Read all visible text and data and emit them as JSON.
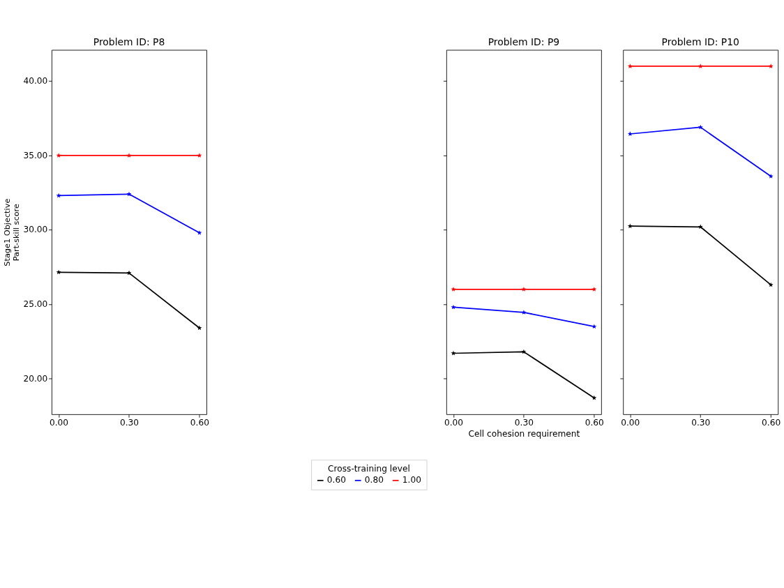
{
  "chart_data": [
    {
      "type": "line",
      "title": "Problem ID: P8",
      "legend_title": "Cross-training level",
      "legend": "bottom",
      "ylabel": "Stage1 Objective\nPart-skill score",
      "x": [
        0,
        0.3,
        0.6
      ],
      "xlim": [
        -0.03,
        0.63
      ],
      "xticks": [
        {
          "value": 0,
          "label": "0.00"
        },
        {
          "value": 0.3,
          "label": "0.30"
        },
        {
          "value": 0.6,
          "label": "0.60"
        }
      ],
      "ylim": [
        17.6,
        42.1
      ],
      "yticks": [
        {
          "value": 20,
          "label": "20.00"
        },
        {
          "value": 25,
          "label": "25.00"
        },
        {
          "value": 30,
          "label": "30.00"
        },
        {
          "value": 35,
          "label": "35.00"
        },
        {
          "value": 40,
          "label": "40.00"
        }
      ],
      "marker": "star",
      "grid": false,
      "series": [
        {
          "name": "0.60",
          "color": "#000000",
          "values": [
            27.15,
            27.1,
            23.4
          ]
        },
        {
          "name": "0.80",
          "color": "#0000ff",
          "values": [
            32.3,
            32.4,
            29.8
          ]
        },
        {
          "name": "1.00",
          "color": "#ff0000",
          "values": [
            35.0,
            35.0,
            35.0
          ]
        }
      ]
    },
    {
      "type": "line",
      "title": "Problem ID: P9",
      "xlabel": "Cell cohesion requirement",
      "tick_labels": "x",
      "x": [
        0,
        0.3,
        0.6
      ],
      "xlim": [
        -0.03,
        0.63
      ],
      "xticks": [
        {
          "value": 0,
          "label": "0.00"
        },
        {
          "value": 0.3,
          "label": "0.30"
        },
        {
          "value": 0.6,
          "label": "0.60"
        }
      ],
      "ylim": [
        17.6,
        42.1
      ],
      "yticks": [
        20,
        25,
        30,
        35,
        40
      ],
      "marker": "star",
      "grid": false,
      "series": [
        {
          "color": "#000000",
          "values": [
            21.7,
            21.8,
            18.7
          ]
        },
        {
          "color": "#0000ff",
          "values": [
            24.8,
            24.45,
            23.5
          ]
        },
        {
          "color": "#ff0000",
          "values": [
            26.0,
            26.0,
            26.0
          ]
        }
      ]
    },
    {
      "type": "line",
      "title": "Problem ID: P10",
      "tick_labels": "x",
      "x": [
        0,
        0.3,
        0.6
      ],
      "xlim": [
        -0.03,
        0.63
      ],
      "xticks": [
        {
          "value": 0,
          "label": "0.00"
        },
        {
          "value": 0.3,
          "label": "0.30"
        },
        {
          "value": 0.6,
          "label": "0.60"
        }
      ],
      "ylim": [
        17.6,
        42.1
      ],
      "yticks": [
        20,
        25,
        30,
        35,
        40
      ],
      "marker": "star",
      "grid": false,
      "series": [
        {
          "color": "#000000",
          "values": [
            30.25,
            30.2,
            26.3
          ]
        },
        {
          "color": "#0000ff",
          "values": [
            36.45,
            36.9,
            33.6
          ]
        },
        {
          "color": "#ff0000",
          "values": [
            41.0,
            41.0,
            41.0
          ]
        }
      ]
    }
  ]
}
